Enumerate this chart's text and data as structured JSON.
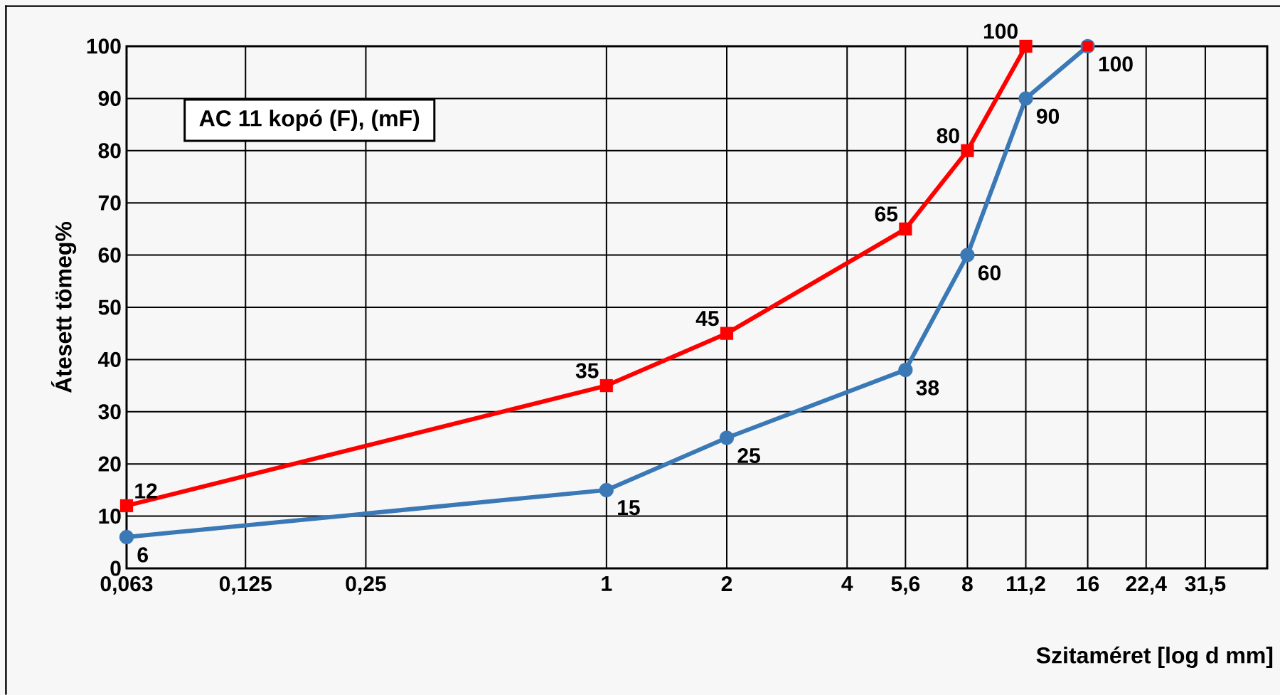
{
  "chart_data": {
    "type": "line",
    "title": "AC 11 kopó (F), (mF)",
    "xlabel": "Szitaméret [log d mm]",
    "ylabel": "Átesett tömeg%",
    "log": "x",
    "xlim": [
      0.063,
      45
    ],
    "ylim": [
      0,
      100
    ],
    "xticks": [
      {
        "value": 0.063,
        "label": "0,063"
      },
      {
        "value": 0.125,
        "label": "0,125"
      },
      {
        "value": 0.25,
        "label": "0,25"
      },
      1,
      2,
      4,
      {
        "value": 5.6,
        "label": "5,6"
      },
      8,
      {
        "value": 11.2,
        "label": "11,2"
      },
      16,
      {
        "value": 22.4,
        "label": "22,4"
      },
      {
        "value": 31.5,
        "label": "31,5"
      }
    ],
    "yticks": [
      0,
      10,
      20,
      30,
      40,
      50,
      60,
      70,
      80,
      90,
      100
    ],
    "grid": true,
    "data_labels": true,
    "line_style": "solid",
    "series": [
      {
        "color": "#3a78b6",
        "marker": "circle",
        "x": [
          0.063,
          1,
          2,
          5.6,
          8,
          11.2,
          16
        ],
        "values": [
          6,
          15,
          25,
          38,
          60,
          90,
          100
        ]
      },
      {
        "color": "#ff0000",
        "marker": "square",
        "x": [
          0.063,
          1,
          2,
          5.6,
          8,
          11.2
        ],
        "values": [
          12,
          35,
          45,
          65,
          80,
          100
        ]
      },
      {
        "type": "scatter",
        "color": "#ff0000",
        "marker": "square",
        "x": [
          16
        ],
        "values": [
          100
        ],
        "value_labels": [
          null
        ]
      }
    ]
  }
}
